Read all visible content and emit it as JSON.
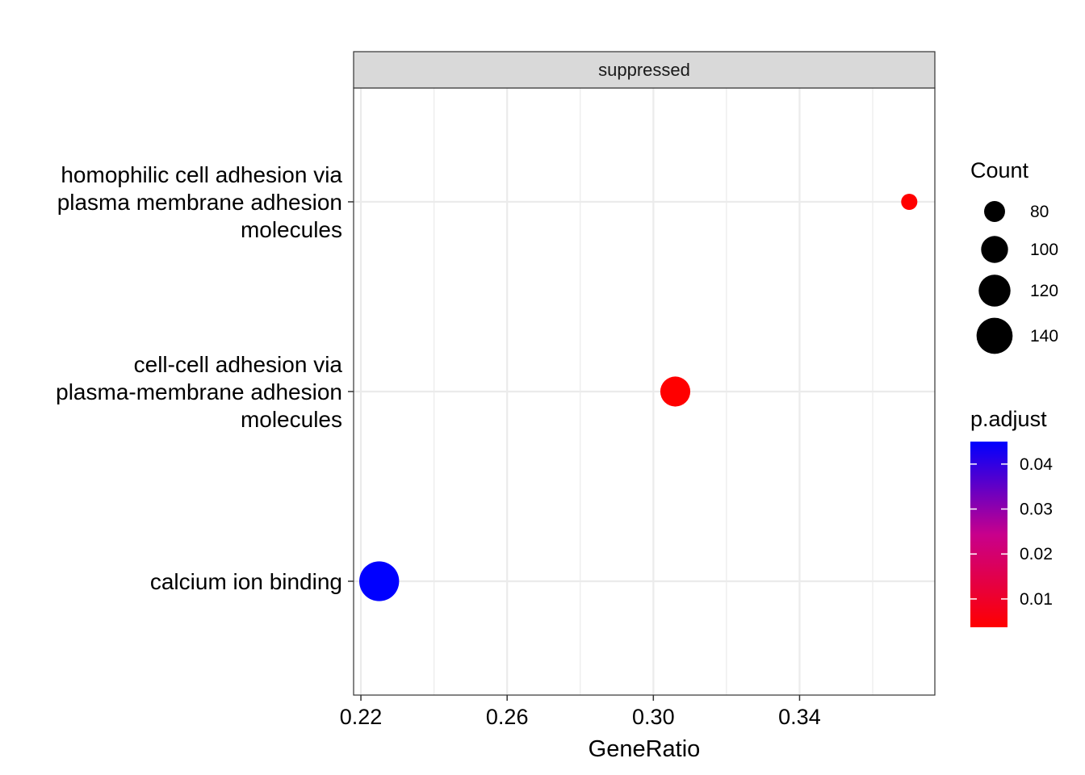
{
  "chart_data": {
    "type": "scatter",
    "facet_label": "suppressed",
    "xlabel": "GeneRatio",
    "ylabel": "",
    "xlim": [
      0.218,
      0.377
    ],
    "x_ticks": [
      0.22,
      0.26,
      0.3,
      0.34
    ],
    "x_tick_labels": [
      "0.22",
      "0.26",
      "0.30",
      "0.34"
    ],
    "x_minor_gridlines": [
      0.24,
      0.28,
      0.32,
      0.36
    ],
    "categories": [
      "homophilic cell adhesion via plasma membrane adhesion molecules",
      "cell-cell adhesion via plasma-membrane adhesion molecules",
      "calcium ion binding"
    ],
    "category_label_lines": [
      [
        "homophilic cell adhesion via",
        "plasma membrane adhesion",
        "molecules"
      ],
      [
        "cell-cell adhesion via",
        "plasma-membrane adhesion",
        "molecules"
      ],
      [
        "calcium ion binding"
      ]
    ],
    "points": [
      {
        "category": "homophilic cell adhesion via plasma membrane adhesion molecules",
        "gene_ratio": 0.37,
        "count": 66,
        "p_adjust": 0.0037
      },
      {
        "category": "cell-cell adhesion via plasma-membrane adhesion molecules",
        "gene_ratio": 0.306,
        "count": 106,
        "p_adjust": 0.0037
      },
      {
        "category": "calcium ion binding",
        "gene_ratio": 0.225,
        "count": 149,
        "p_adjust": 0.045
      }
    ],
    "size_legend": {
      "title": "Count",
      "values": [
        80,
        100,
        120,
        140
      ],
      "labels": [
        "80",
        "100",
        "120",
        "140"
      ]
    },
    "color_legend": {
      "title": "p.adjust",
      "range": [
        0.0037,
        0.045
      ],
      "ticks": [
        0.01,
        0.02,
        0.03,
        0.04
      ],
      "tick_labels": [
        "0.01",
        "0.02",
        "0.03",
        "0.04"
      ],
      "low_color": "#ff0000",
      "high_color": "#0000ff"
    },
    "grid": true,
    "legend_position": "right",
    "colors": {
      "panel_border": "#333333",
      "grid": "#ebebeb",
      "strip_fill": "#d9d9d9",
      "text": "#000000"
    }
  }
}
